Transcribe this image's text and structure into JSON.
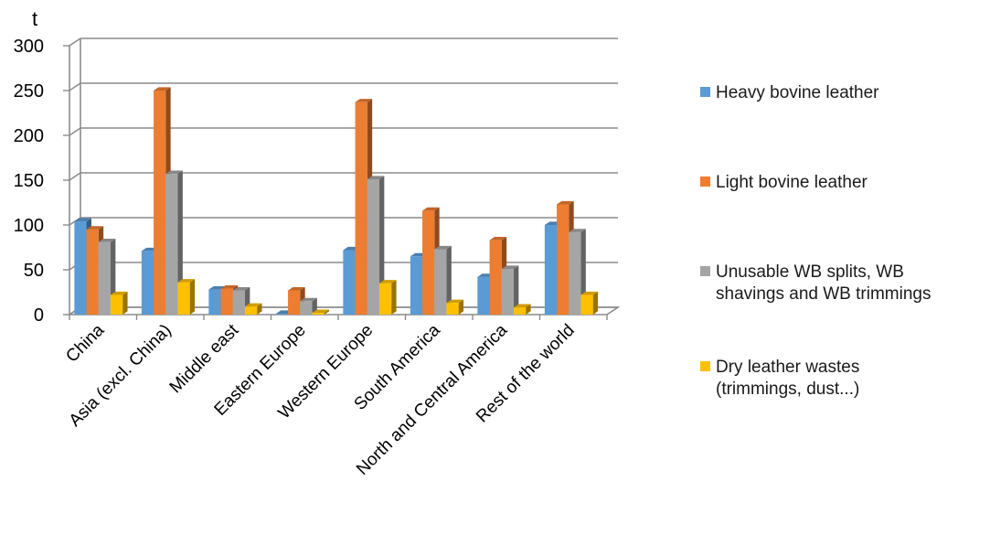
{
  "chart_data": {
    "type": "bar",
    "ylabel": "t",
    "xlabel": "",
    "ylim": [
      0,
      300
    ],
    "y_ticks": [
      0,
      50,
      100,
      150,
      200,
      250,
      300
    ],
    "categories": [
      "China",
      "Asia (excl. China)",
      "Middle east",
      "Eastern Europe",
      "Western Europe",
      "South America",
      "North and Central America",
      "Rest of the world"
    ],
    "series": [
      {
        "name": "Heavy bovine leather",
        "color": "#5B9BD5",
        "values": [
          104,
          71,
          28,
          1,
          72,
          65,
          42,
          100
        ]
      },
      {
        "name": "Light bovine leather",
        "color": "#ED7D31",
        "values": [
          95,
          250,
          29,
          27,
          237,
          116,
          83,
          123
        ]
      },
      {
        "name": "Unusable WB splits, WB shavings and WB trimmings",
        "color": "#A5A5A5",
        "values": [
          81,
          157,
          27,
          15,
          151,
          73,
          51,
          92
        ]
      },
      {
        "name": "Dry leather wastes (trimmings, dust...)",
        "color": "#FFC000",
        "values": [
          22,
          36,
          9,
          2,
          35,
          13,
          8,
          22
        ]
      }
    ],
    "legend_lines": [
      [
        "Heavy bovine leather"
      ],
      [
        "Light bovine leather"
      ],
      [
        "Unusable WB splits, WB",
        "shavings and WB trimmings"
      ],
      [
        "Dry leather wastes",
        "(trimmings, dust...)"
      ]
    ],
    "legend_position": "right",
    "grid": true,
    "three_d": true
  }
}
